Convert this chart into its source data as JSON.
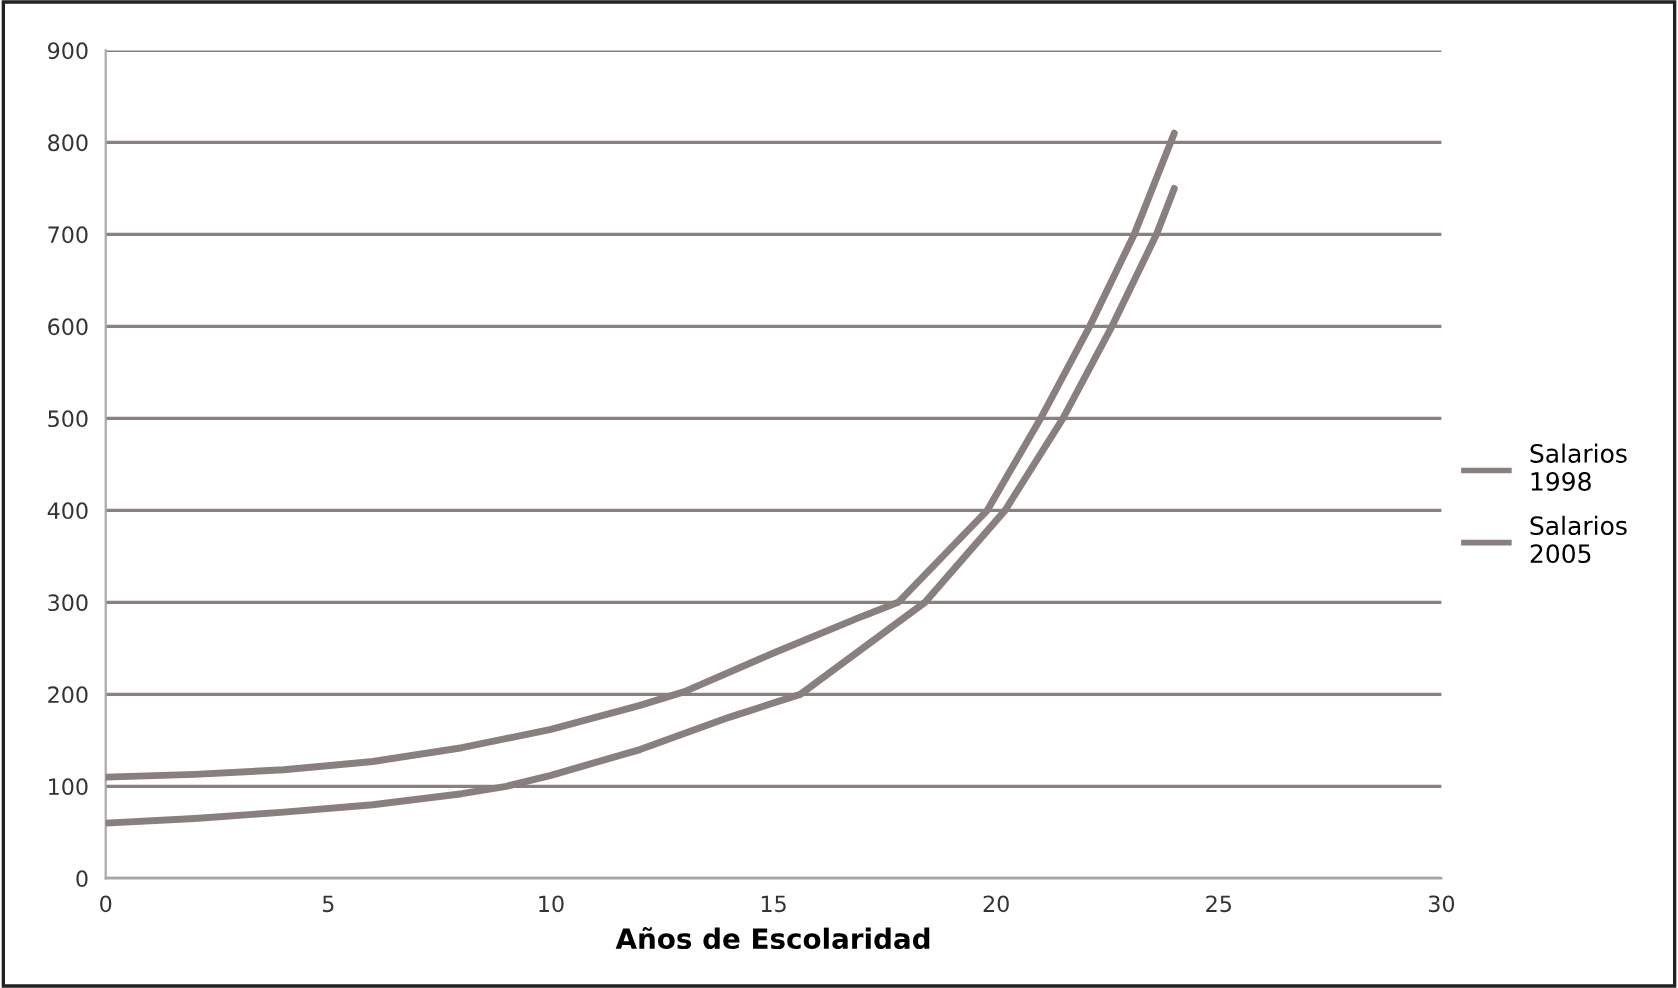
{
  "chart_data": {
    "type": "line",
    "xlabel": "Años de Escolaridad",
    "xlim": [
      0,
      30
    ],
    "xticks": [
      0,
      5,
      10,
      15,
      20,
      25,
      30
    ],
    "ylim": [
      0,
      900
    ],
    "yticks": [
      0,
      100,
      200,
      300,
      400,
      500,
      600,
      700,
      800,
      900
    ],
    "grid": "y",
    "legend": "right",
    "line_style": "solid",
    "marker": "none",
    "series": [
      {
        "name": "Salarios\n1998",
        "color": "#8a7f7f",
        "x": [
          0,
          2,
          4,
          6,
          8,
          9,
          10,
          12,
          14,
          15.6,
          17,
          18.4,
          19.3,
          20.2,
          21.5,
          22.6,
          23.6,
          24
        ],
        "values": [
          60,
          65,
          72,
          80,
          92,
          100,
          112,
          140,
          175,
          200,
          250,
          300,
          350,
          400,
          500,
          600,
          700,
          750
        ]
      },
      {
        "name": "Salarios\n2005",
        "color": "#8a7f7f",
        "x": [
          0,
          2,
          4,
          6,
          8,
          10,
          12,
          13,
          15,
          17,
          17.8,
          19,
          19.8,
          21,
          22.1,
          23.1,
          24
        ],
        "values": [
          110,
          113,
          118,
          127,
          142,
          162,
          188,
          203,
          245,
          285,
          300,
          360,
          400,
          500,
          600,
          700,
          810
        ]
      }
    ]
  }
}
